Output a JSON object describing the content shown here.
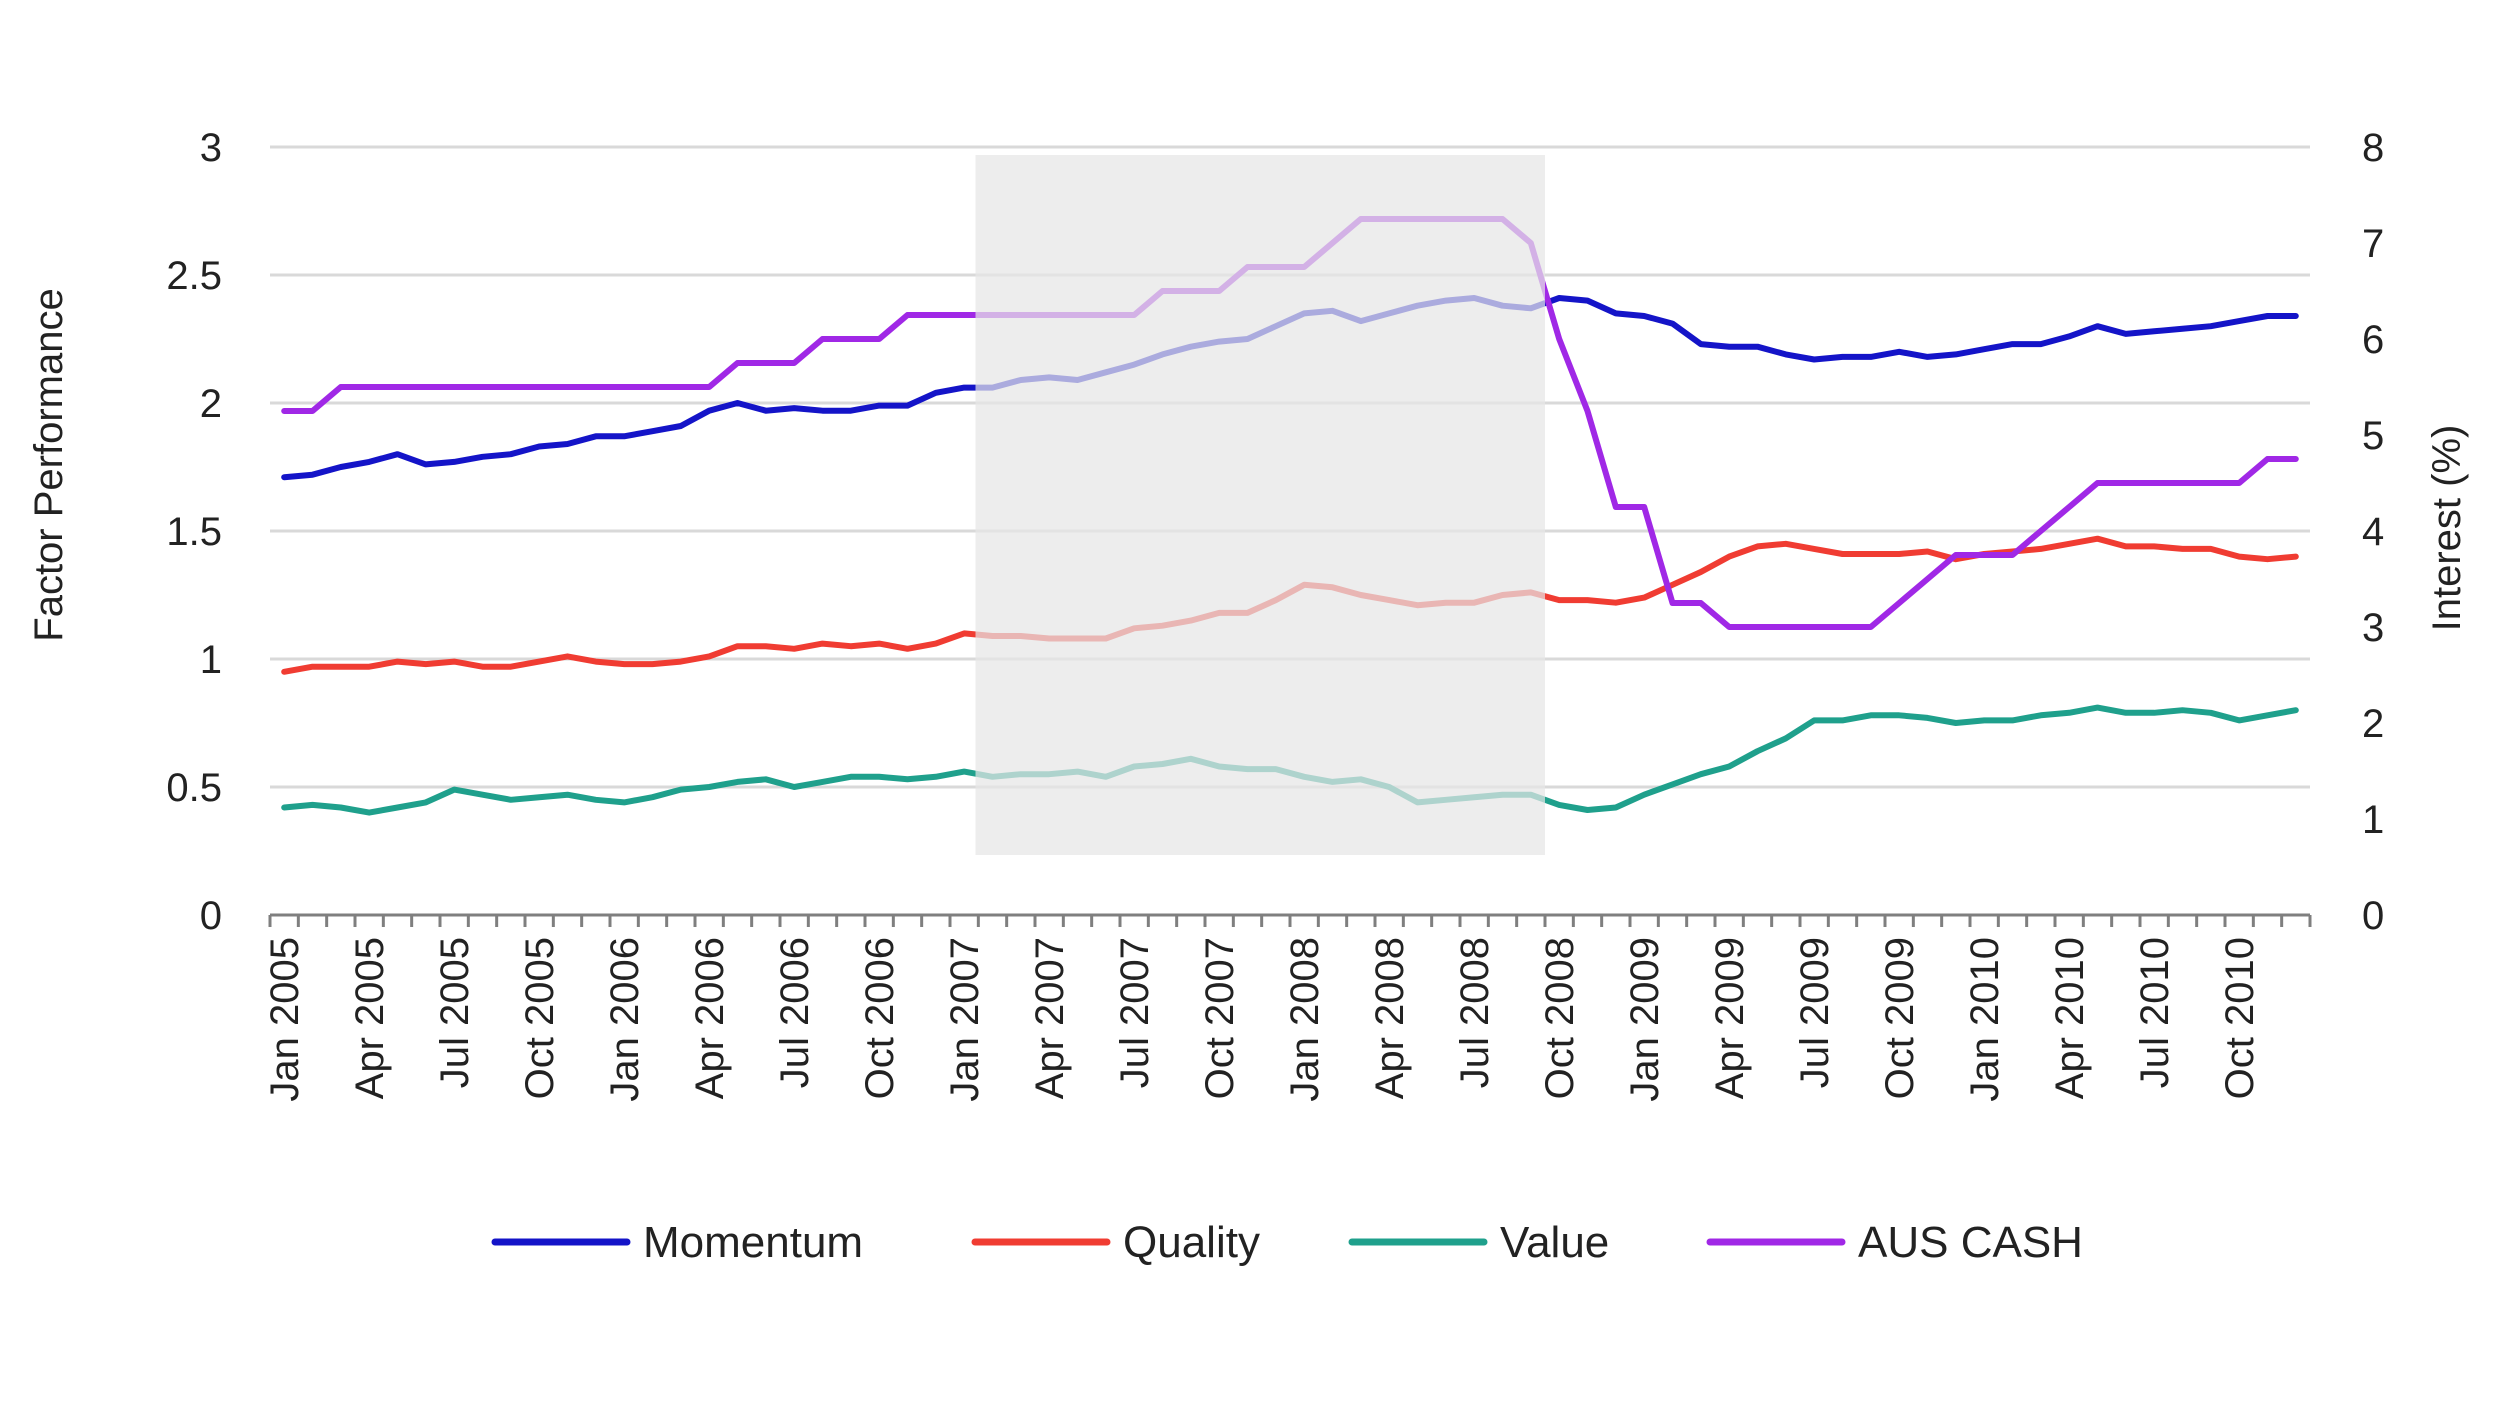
{
  "colors": {
    "momentum": "#1414c8",
    "quality": "#f03c32",
    "value": "#1fa08c",
    "aus_cash": "#a028e6",
    "shade": "#e6e6e6"
  },
  "chart_data": {
    "type": "line",
    "title": "",
    "ylabel": "Factor Performance",
    "y2label": "Interest  (%)",
    "ylim": [
      0,
      3
    ],
    "y2lim": [
      0,
      8
    ],
    "yticks": [
      "0",
      "0.5",
      "1",
      "1.5",
      "2",
      "2.5",
      "3"
    ],
    "y2ticks": [
      "0",
      "1",
      "2",
      "3",
      "4",
      "5",
      "6",
      "7",
      "8"
    ],
    "xticks": [
      "Jan 2005",
      "Apr 2005",
      "Jul 2005",
      "Oct 2005",
      "Jan 2006",
      "Apr 2006",
      "Jul 2006",
      "Oct 2006",
      "Jan 2007",
      "Apr 2007",
      "Jul 2007",
      "Oct 2007",
      "Jan 2008",
      "Apr 2008",
      "Jul 2008",
      "Oct 2008",
      "Jan 2009",
      "Apr 2009",
      "Jul 2009",
      "Oct 2009",
      "Jan 2010",
      "Apr 2010",
      "Jul 2010",
      "Oct 2010"
    ],
    "grid": true,
    "legend_position": "bottom",
    "shaded_region": {
      "from": "Feb 2007",
      "to": "Sep 2008"
    },
    "x": [
      "Jan 2005",
      "Feb 2005",
      "Mar 2005",
      "Apr 2005",
      "May 2005",
      "Jun 2005",
      "Jul 2005",
      "Aug 2005",
      "Sep 2005",
      "Oct 2005",
      "Nov 2005",
      "Dec 2005",
      "Jan 2006",
      "Feb 2006",
      "Mar 2006",
      "Apr 2006",
      "May 2006",
      "Jun 2006",
      "Jul 2006",
      "Aug 2006",
      "Sep 2006",
      "Oct 2006",
      "Nov 2006",
      "Dec 2006",
      "Jan 2007",
      "Feb 2007",
      "Mar 2007",
      "Apr 2007",
      "May 2007",
      "Jun 2007",
      "Jul 2007",
      "Aug 2007",
      "Sep 2007",
      "Oct 2007",
      "Nov 2007",
      "Dec 2007",
      "Jan 2008",
      "Feb 2008",
      "Mar 2008",
      "Apr 2008",
      "May 2008",
      "Jun 2008",
      "Jul 2008",
      "Aug 2008",
      "Sep 2008",
      "Oct 2008",
      "Nov 2008",
      "Dec 2008",
      "Jan 2009",
      "Feb 2009",
      "Mar 2009",
      "Apr 2009",
      "May 2009",
      "Jun 2009",
      "Jul 2009",
      "Aug 2009",
      "Sep 2009",
      "Oct 2009",
      "Nov 2009",
      "Dec 2009",
      "Jan 2010",
      "Feb 2010",
      "Mar 2010",
      "Apr 2010",
      "May 2010",
      "Jun 2010",
      "Jul 2010",
      "Aug 2010",
      "Sep 2010",
      "Oct 2010",
      "Nov 2010",
      "Dec 2010"
    ],
    "series": [
      {
        "name": "Momentum",
        "axis": "left",
        "color": "#1414c8",
        "values": [
          1.71,
          1.72,
          1.75,
          1.77,
          1.8,
          1.76,
          1.77,
          1.79,
          1.8,
          1.83,
          1.84,
          1.87,
          1.87,
          1.89,
          1.91,
          1.97,
          2.0,
          1.97,
          1.98,
          1.97,
          1.97,
          1.99,
          1.99,
          2.04,
          2.06,
          2.06,
          2.09,
          2.1,
          2.09,
          2.12,
          2.15,
          2.19,
          2.22,
          2.24,
          2.25,
          2.3,
          2.35,
          2.36,
          2.32,
          2.35,
          2.38,
          2.4,
          2.41,
          2.38,
          2.37,
          2.41,
          2.4,
          2.35,
          2.34,
          2.31,
          2.23,
          2.22,
          2.22,
          2.19,
          2.17,
          2.18,
          2.18,
          2.2,
          2.18,
          2.19,
          2.21,
          2.23,
          2.23,
          2.26,
          2.3,
          2.27,
          2.28,
          2.29,
          2.3,
          2.32,
          2.34,
          2.34
        ]
      },
      {
        "name": "Quality",
        "axis": "left",
        "color": "#f03c32",
        "values": [
          0.95,
          0.97,
          0.97,
          0.97,
          0.99,
          0.98,
          0.99,
          0.97,
          0.97,
          0.99,
          1.01,
          0.99,
          0.98,
          0.98,
          0.99,
          1.01,
          1.05,
          1.05,
          1.04,
          1.06,
          1.05,
          1.06,
          1.04,
          1.06,
          1.1,
          1.09,
          1.09,
          1.08,
          1.08,
          1.08,
          1.12,
          1.13,
          1.15,
          1.18,
          1.18,
          1.23,
          1.29,
          1.28,
          1.25,
          1.23,
          1.21,
          1.22,
          1.22,
          1.25,
          1.26,
          1.23,
          1.23,
          1.22,
          1.24,
          1.29,
          1.34,
          1.4,
          1.44,
          1.45,
          1.43,
          1.41,
          1.41,
          1.41,
          1.42,
          1.39,
          1.41,
          1.42,
          1.43,
          1.45,
          1.47,
          1.44,
          1.44,
          1.43,
          1.43,
          1.4,
          1.39,
          1.4
        ]
      },
      {
        "name": "Value",
        "axis": "left",
        "color": "#1fa08c",
        "values": [
          0.42,
          0.43,
          0.42,
          0.4,
          0.42,
          0.44,
          0.49,
          0.47,
          0.45,
          0.46,
          0.47,
          0.45,
          0.44,
          0.46,
          0.49,
          0.5,
          0.52,
          0.53,
          0.5,
          0.52,
          0.54,
          0.54,
          0.53,
          0.54,
          0.56,
          0.54,
          0.55,
          0.55,
          0.56,
          0.54,
          0.58,
          0.59,
          0.61,
          0.58,
          0.57,
          0.57,
          0.54,
          0.52,
          0.53,
          0.5,
          0.44,
          0.45,
          0.46,
          0.47,
          0.47,
          0.43,
          0.41,
          0.42,
          0.47,
          0.51,
          0.55,
          0.58,
          0.64,
          0.69,
          0.76,
          0.76,
          0.78,
          0.78,
          0.77,
          0.75,
          0.76,
          0.76,
          0.78,
          0.79,
          0.81,
          0.79,
          0.79,
          0.8,
          0.79,
          0.76,
          0.78,
          0.8
        ]
      },
      {
        "name": "AUS CASH",
        "axis": "right",
        "color": "#a028e6",
        "values": [
          5.25,
          5.25,
          5.5,
          5.5,
          5.5,
          5.5,
          5.5,
          5.5,
          5.5,
          5.5,
          5.5,
          5.5,
          5.5,
          5.5,
          5.5,
          5.5,
          5.75,
          5.75,
          5.75,
          6.0,
          6.0,
          6.0,
          6.25,
          6.25,
          6.25,
          6.25,
          6.25,
          6.25,
          6.25,
          6.25,
          6.25,
          6.5,
          6.5,
          6.5,
          6.75,
          6.75,
          6.75,
          7.0,
          7.25,
          7.25,
          7.25,
          7.25,
          7.25,
          7.25,
          7.0,
          6.0,
          5.25,
          4.25,
          4.25,
          3.25,
          3.25,
          3.0,
          3.0,
          3.0,
          3.0,
          3.0,
          3.0,
          3.25,
          3.5,
          3.75,
          3.75,
          3.75,
          4.0,
          4.25,
          4.5,
          4.5,
          4.5,
          4.5,
          4.5,
          4.5,
          4.75,
          4.75
        ]
      }
    ]
  }
}
